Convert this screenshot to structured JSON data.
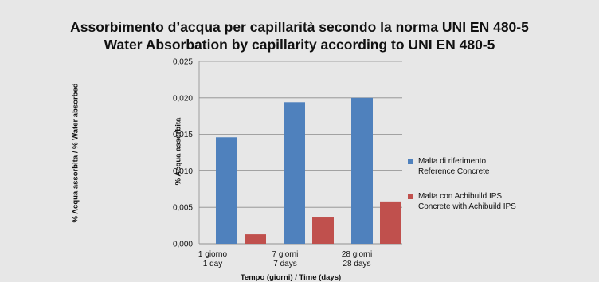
{
  "chart_data": {
    "type": "bar",
    "title": "Assorbimento d’acqua per capillarità secondo la norma UNI EN 480-5",
    "subtitle": "Water Absorbation by capillarity according to UNI EN 480-5",
    "ylabel_outer": "% Acqua assorbita / % Water absorbed",
    "ylabel_inner": "% Acqua assorbita",
    "xlabel": "Tempo (giorni) / Time (days)",
    "categories": [
      {
        "line1": "1 giorno",
        "line2": "1 day"
      },
      {
        "line1": "7 giorni",
        "line2": "7 days"
      },
      {
        "line1": "28 giorni",
        "line2": "28 days"
      }
    ],
    "ylim": [
      0,
      0.025
    ],
    "yticks": [
      "0,000",
      "0,005",
      "0,010",
      "0,015",
      "0,020",
      "0,025"
    ],
    "grid": true,
    "legend_position": "right",
    "series": [
      {
        "name_line1": "Malta di riferimento",
        "name_line2": "Reference Concrete",
        "color": "#4f81bd",
        "values": [
          0.0146,
          0.0194,
          0.02
        ]
      },
      {
        "name_line1": "Malta con Achibuild IPS",
        "name_line2": "Concrete with Achibuild IPS",
        "color": "#c0504d",
        "values": [
          0.0013,
          0.0036,
          0.0058
        ]
      }
    ]
  }
}
